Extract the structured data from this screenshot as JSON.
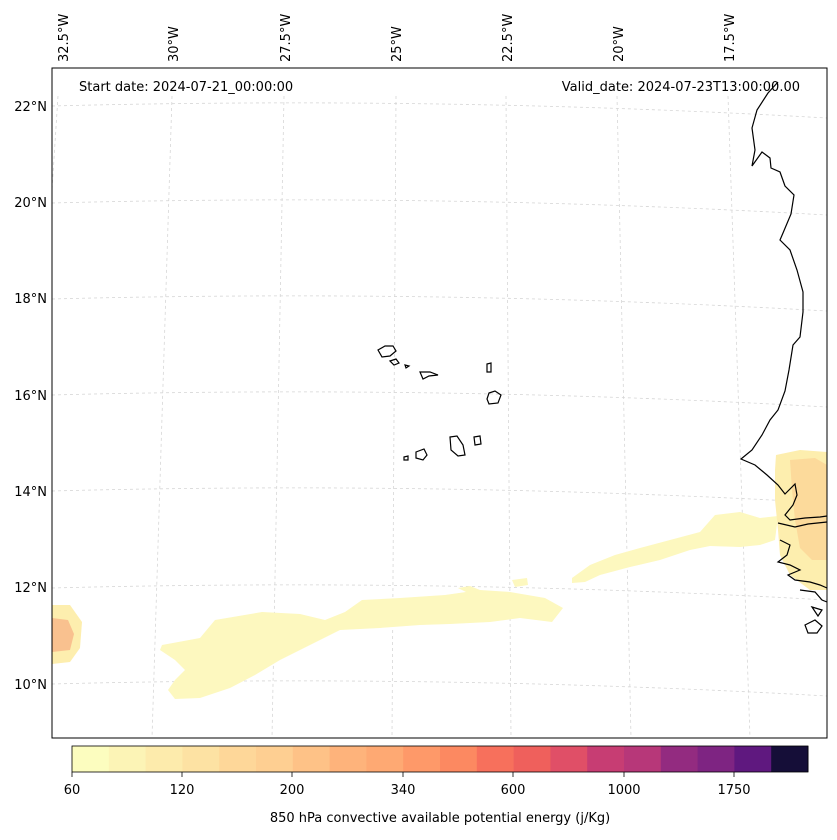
{
  "map": {
    "start_date": "Start date: 2024-07-21_00:00:00",
    "valid_date": "Valid_date: 2024-07-23T13:00:00.00",
    "lon_labels": [
      "32.5°W",
      "30°W",
      "27.5°W",
      "25°W",
      "22.5°W",
      "20°W",
      "17.5°W"
    ],
    "lat_labels": [
      "22°N",
      "20°N",
      "18°N",
      "16°N",
      "14°N",
      "12°N",
      "10°N"
    ]
  },
  "colorbar": {
    "label": "850 hPa convective available potential energy (j/Kg)",
    "tick_labels": [
      "60",
      "120",
      "200",
      "340",
      "600",
      "1000",
      "1750"
    ],
    "colors": [
      "#fcfdbf",
      "#fcf4b6",
      "#fdebac",
      "#fde2a3",
      "#fed799",
      "#fecf92",
      "#fec287",
      "#feb37b",
      "#fea973",
      "#fe9969",
      "#fc8961",
      "#f7705c",
      "#ef605c",
      "#e04f67",
      "#c73d73",
      "#b73779",
      "#932b80",
      "#7e2482",
      "#5f187f",
      "#150e38"
    ]
  },
  "contour_colors": {
    "pale": "#fdf8bf",
    "light": "#fdeeae",
    "orange": "#fbd496",
    "deep": "#f8b98a"
  },
  "coast_color": "#000000",
  "grid_color": "#d0d0d0"
}
